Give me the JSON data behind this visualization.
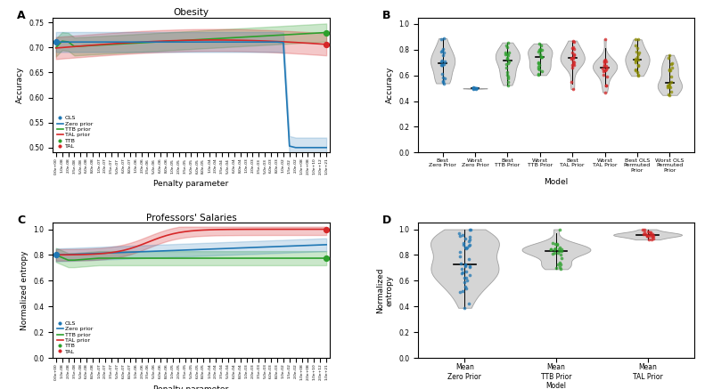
{
  "panel_A_title": "Obesity",
  "panel_C_title": "Professors' Salaries",
  "xlabel_AC": "Penalty parameter",
  "ylabel_A": "Accuracy",
  "ylabel_C": "Normalized entropy",
  "ylabel_D": "Normalized\nentropy",
  "xlabel_B": "Model",
  "panel_B_xticks": [
    "Best\nZero Prior",
    "Worst\nZero Prior",
    "Best\nTTB Prior",
    "Worst\nTTB Prior",
    "Best\nTAL Prior",
    "Worst\nTAL Prior",
    "Best OLS\nPermuted\nPrior",
    "Worst OLS\nPermuted\nPrior"
  ],
  "panel_D_xticks": [
    "Mean\nZero Prior",
    "Mean\nTTB Prior\nModel",
    "Mean\nTAL Prior"
  ],
  "color_blue": "#1f77b4",
  "color_green": "#2ca02c",
  "color_red": "#d62728",
  "color_yellow_green": "#8B8B00",
  "color_violin_face": "#c8c8c8",
  "color_violin_edge": "#888888",
  "panel_A_ylim": [
    0.49,
    0.76
  ],
  "panel_A_yticks": [
    0.5,
    0.55,
    0.6,
    0.65,
    0.7,
    0.75
  ],
  "panel_B_ylim": [
    0.0,
    1.05
  ],
  "panel_B_yticks": [
    0.0,
    0.2,
    0.4,
    0.6,
    0.8,
    1.0
  ],
  "panel_C_ylim": [
    0.0,
    1.05
  ],
  "panel_C_yticks": [
    0.0,
    0.2,
    0.4,
    0.6,
    0.8,
    1.0
  ],
  "panel_D_ylim": [
    0.0,
    1.05
  ],
  "panel_D_yticks": [
    0.0,
    0.2,
    0.4,
    0.6,
    0.8,
    1.0
  ],
  "xtick_labels_AC": [
    "0.0e+00",
    "1.0e-08",
    "2.0e-08",
    "3.5e-08",
    "5.0e-08",
    "6.0e-08",
    "8.0e-08",
    "1.0e-07",
    "2.0e-07",
    "3.5e-07",
    "5.0e-07",
    "6.0e-07",
    "8.0e-07",
    "1.0e-06",
    "2.0e-06",
    "3.5e-06",
    "5.0e-06",
    "6.0e-06",
    "8.0e-06",
    "1.0e-05",
    "2.0e-05",
    "3.5e-05",
    "5.0e-05",
    "6.0e-05",
    "8.0e-05",
    "1.0e-04",
    "2.0e-04",
    "3.5e-04",
    "5.0e-04",
    "6.0e-04",
    "8.0e-04",
    "1.0e-03",
    "2.0e-03",
    "3.5e-03",
    "5.0e-03",
    "6.0e-03",
    "8.0e-03",
    "1.0e-02",
    "1.5e-02",
    "2.0e-02",
    "1.0e+08",
    "2.0e+08",
    "1.0e+10",
    "2.0e+12",
    "1.0e+21"
  ]
}
